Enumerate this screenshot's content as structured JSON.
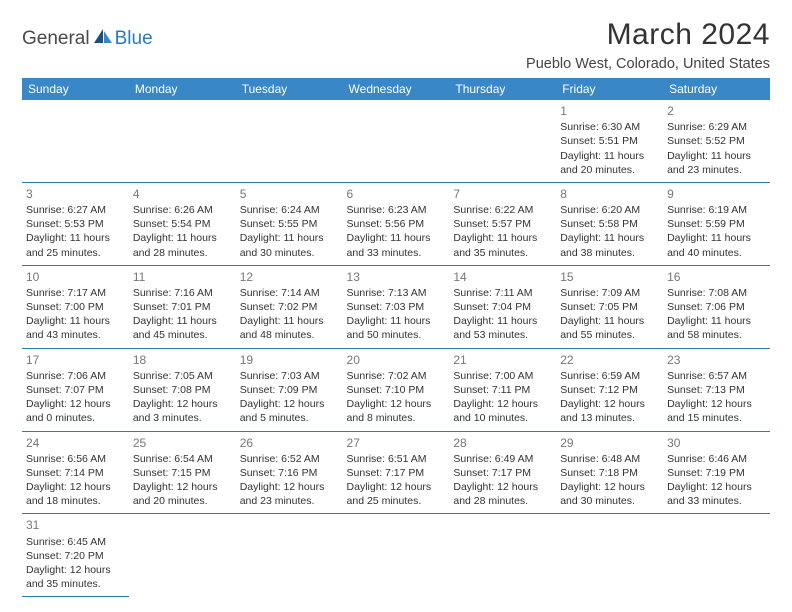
{
  "logo": {
    "part1": "General",
    "part2": "Blue"
  },
  "title": "March 2024",
  "location": "Pueblo West, Colorado, United States",
  "colors": {
    "header_bg": "#3a87c7",
    "header_text": "#ffffff",
    "divider": "#2b7bb9",
    "daynum": "#777777",
    "body_text": "#333333",
    "logo_gray": "#4a4a4a",
    "logo_blue": "#2b7bb9",
    "background": "#ffffff"
  },
  "typography": {
    "title_fontsize": 30,
    "location_fontsize": 14.5,
    "header_fontsize": 12,
    "cell_fontsize": 10.5,
    "daynum_fontsize": 12
  },
  "day_headers": [
    "Sunday",
    "Monday",
    "Tuesday",
    "Wednesday",
    "Thursday",
    "Friday",
    "Saturday"
  ],
  "weeks": [
    [
      null,
      null,
      null,
      null,
      null,
      {
        "n": "1",
        "sr": "Sunrise: 6:30 AM",
        "ss": "Sunset: 5:51 PM",
        "d1": "Daylight: 11 hours",
        "d2": "and 20 minutes."
      },
      {
        "n": "2",
        "sr": "Sunrise: 6:29 AM",
        "ss": "Sunset: 5:52 PM",
        "d1": "Daylight: 11 hours",
        "d2": "and 23 minutes."
      }
    ],
    [
      {
        "n": "3",
        "sr": "Sunrise: 6:27 AM",
        "ss": "Sunset: 5:53 PM",
        "d1": "Daylight: 11 hours",
        "d2": "and 25 minutes."
      },
      {
        "n": "4",
        "sr": "Sunrise: 6:26 AM",
        "ss": "Sunset: 5:54 PM",
        "d1": "Daylight: 11 hours",
        "d2": "and 28 minutes."
      },
      {
        "n": "5",
        "sr": "Sunrise: 6:24 AM",
        "ss": "Sunset: 5:55 PM",
        "d1": "Daylight: 11 hours",
        "d2": "and 30 minutes."
      },
      {
        "n": "6",
        "sr": "Sunrise: 6:23 AM",
        "ss": "Sunset: 5:56 PM",
        "d1": "Daylight: 11 hours",
        "d2": "and 33 minutes."
      },
      {
        "n": "7",
        "sr": "Sunrise: 6:22 AM",
        "ss": "Sunset: 5:57 PM",
        "d1": "Daylight: 11 hours",
        "d2": "and 35 minutes."
      },
      {
        "n": "8",
        "sr": "Sunrise: 6:20 AM",
        "ss": "Sunset: 5:58 PM",
        "d1": "Daylight: 11 hours",
        "d2": "and 38 minutes."
      },
      {
        "n": "9",
        "sr": "Sunrise: 6:19 AM",
        "ss": "Sunset: 5:59 PM",
        "d1": "Daylight: 11 hours",
        "d2": "and 40 minutes."
      }
    ],
    [
      {
        "n": "10",
        "sr": "Sunrise: 7:17 AM",
        "ss": "Sunset: 7:00 PM",
        "d1": "Daylight: 11 hours",
        "d2": "and 43 minutes."
      },
      {
        "n": "11",
        "sr": "Sunrise: 7:16 AM",
        "ss": "Sunset: 7:01 PM",
        "d1": "Daylight: 11 hours",
        "d2": "and 45 minutes."
      },
      {
        "n": "12",
        "sr": "Sunrise: 7:14 AM",
        "ss": "Sunset: 7:02 PM",
        "d1": "Daylight: 11 hours",
        "d2": "and 48 minutes."
      },
      {
        "n": "13",
        "sr": "Sunrise: 7:13 AM",
        "ss": "Sunset: 7:03 PM",
        "d1": "Daylight: 11 hours",
        "d2": "and 50 minutes."
      },
      {
        "n": "14",
        "sr": "Sunrise: 7:11 AM",
        "ss": "Sunset: 7:04 PM",
        "d1": "Daylight: 11 hours",
        "d2": "and 53 minutes."
      },
      {
        "n": "15",
        "sr": "Sunrise: 7:09 AM",
        "ss": "Sunset: 7:05 PM",
        "d1": "Daylight: 11 hours",
        "d2": "and 55 minutes."
      },
      {
        "n": "16",
        "sr": "Sunrise: 7:08 AM",
        "ss": "Sunset: 7:06 PM",
        "d1": "Daylight: 11 hours",
        "d2": "and 58 minutes."
      }
    ],
    [
      {
        "n": "17",
        "sr": "Sunrise: 7:06 AM",
        "ss": "Sunset: 7:07 PM",
        "d1": "Daylight: 12 hours",
        "d2": "and 0 minutes."
      },
      {
        "n": "18",
        "sr": "Sunrise: 7:05 AM",
        "ss": "Sunset: 7:08 PM",
        "d1": "Daylight: 12 hours",
        "d2": "and 3 minutes."
      },
      {
        "n": "19",
        "sr": "Sunrise: 7:03 AM",
        "ss": "Sunset: 7:09 PM",
        "d1": "Daylight: 12 hours",
        "d2": "and 5 minutes."
      },
      {
        "n": "20",
        "sr": "Sunrise: 7:02 AM",
        "ss": "Sunset: 7:10 PM",
        "d1": "Daylight: 12 hours",
        "d2": "and 8 minutes."
      },
      {
        "n": "21",
        "sr": "Sunrise: 7:00 AM",
        "ss": "Sunset: 7:11 PM",
        "d1": "Daylight: 12 hours",
        "d2": "and 10 minutes."
      },
      {
        "n": "22",
        "sr": "Sunrise: 6:59 AM",
        "ss": "Sunset: 7:12 PM",
        "d1": "Daylight: 12 hours",
        "d2": "and 13 minutes."
      },
      {
        "n": "23",
        "sr": "Sunrise: 6:57 AM",
        "ss": "Sunset: 7:13 PM",
        "d1": "Daylight: 12 hours",
        "d2": "and 15 minutes."
      }
    ],
    [
      {
        "n": "24",
        "sr": "Sunrise: 6:56 AM",
        "ss": "Sunset: 7:14 PM",
        "d1": "Daylight: 12 hours",
        "d2": "and 18 minutes."
      },
      {
        "n": "25",
        "sr": "Sunrise: 6:54 AM",
        "ss": "Sunset: 7:15 PM",
        "d1": "Daylight: 12 hours",
        "d2": "and 20 minutes."
      },
      {
        "n": "26",
        "sr": "Sunrise: 6:52 AM",
        "ss": "Sunset: 7:16 PM",
        "d1": "Daylight: 12 hours",
        "d2": "and 23 minutes."
      },
      {
        "n": "27",
        "sr": "Sunrise: 6:51 AM",
        "ss": "Sunset: 7:17 PM",
        "d1": "Daylight: 12 hours",
        "d2": "and 25 minutes."
      },
      {
        "n": "28",
        "sr": "Sunrise: 6:49 AM",
        "ss": "Sunset: 7:17 PM",
        "d1": "Daylight: 12 hours",
        "d2": "and 28 minutes."
      },
      {
        "n": "29",
        "sr": "Sunrise: 6:48 AM",
        "ss": "Sunset: 7:18 PM",
        "d1": "Daylight: 12 hours",
        "d2": "and 30 minutes."
      },
      {
        "n": "30",
        "sr": "Sunrise: 6:46 AM",
        "ss": "Sunset: 7:19 PM",
        "d1": "Daylight: 12 hours",
        "d2": "and 33 minutes."
      }
    ],
    [
      {
        "n": "31",
        "sr": "Sunrise: 6:45 AM",
        "ss": "Sunset: 7:20 PM",
        "d1": "Daylight: 12 hours",
        "d2": "and 35 minutes."
      },
      null,
      null,
      null,
      null,
      null,
      null
    ]
  ]
}
